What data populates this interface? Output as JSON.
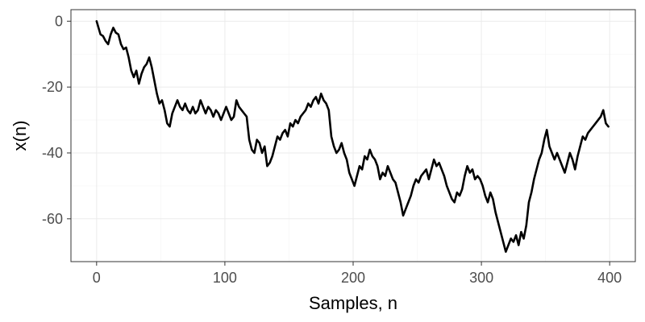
{
  "chart_data": {
    "type": "line",
    "title": "",
    "xlabel": "Samples, n",
    "ylabel": "x(n)",
    "xlim": [
      -20,
      420
    ],
    "ylim": [
      -73,
      3.5
    ],
    "x_ticks": [
      0,
      100,
      200,
      300,
      400
    ],
    "y_ticks": [
      0,
      -20,
      -40,
      -60
    ],
    "x_tick_labels": [
      "0",
      "100",
      "200",
      "300",
      "400"
    ],
    "y_tick_labels": [
      "0",
      "-20",
      "-40",
      "-60"
    ],
    "grid": true,
    "legend": "none",
    "line_color": "#000000",
    "series": [
      {
        "name": "x(n)",
        "x": [
          0,
          3,
          5,
          7,
          9,
          11,
          13,
          15,
          17,
          19,
          21,
          23,
          25,
          27,
          29,
          31,
          33,
          35,
          37,
          39,
          41,
          43,
          45,
          47,
          49,
          51,
          53,
          55,
          57,
          59,
          61,
          63,
          65,
          67,
          69,
          71,
          73,
          75,
          77,
          79,
          81,
          83,
          85,
          87,
          89,
          91,
          93,
          95,
          97,
          99,
          101,
          103,
          105,
          107,
          109,
          111,
          113,
          115,
          117,
          119,
          121,
          123,
          125,
          127,
          129,
          131,
          133,
          135,
          137,
          139,
          141,
          143,
          145,
          147,
          149,
          151,
          153,
          155,
          157,
          159,
          161,
          163,
          165,
          167,
          169,
          171,
          173,
          175,
          177,
          179,
          181,
          183,
          185,
          187,
          189,
          191,
          193,
          195,
          197,
          199,
          201,
          203,
          205,
          207,
          209,
          211,
          213,
          215,
          217,
          219,
          221,
          223,
          225,
          227,
          229,
          231,
          233,
          235,
          237,
          239,
          241,
          243,
          245,
          247,
          249,
          251,
          253,
          255,
          257,
          259,
          261,
          263,
          265,
          267,
          269,
          271,
          273,
          275,
          277,
          279,
          281,
          283,
          285,
          287,
          289,
          291,
          293,
          295,
          297,
          299,
          301,
          303,
          305,
          307,
          309,
          311,
          313,
          315,
          317,
          319,
          321,
          323,
          325,
          327,
          329,
          331,
          333,
          335,
          337,
          339,
          341,
          343,
          345,
          347,
          349,
          351,
          353,
          355,
          357,
          359,
          361,
          363,
          365,
          367,
          369,
          371,
          373,
          375,
          377,
          379,
          381,
          383,
          385,
          387,
          389,
          391,
          393,
          395,
          397,
          399
        ],
        "values": [
          0,
          -4,
          -4.5,
          -6,
          -7,
          -4,
          -2,
          -3.5,
          -4,
          -7,
          -8.5,
          -8,
          -11,
          -15,
          -17,
          -15,
          -19,
          -16,
          -14,
          -13,
          -11,
          -14,
          -18,
          -22,
          -25,
          -24,
          -27,
          -31,
          -32,
          -28,
          -26,
          -24,
          -26,
          -27,
          -25,
          -27,
          -28,
          -26,
          -28,
          -27,
          -24,
          -26,
          -28,
          -26,
          -27,
          -29,
          -27,
          -28,
          -30,
          -28,
          -26,
          -28,
          -30,
          -29,
          -24,
          -26,
          -27,
          -28,
          -29,
          -36,
          -39,
          -40,
          -36,
          -37,
          -40,
          -38,
          -44,
          -43,
          -41,
          -38,
          -35,
          -36,
          -34,
          -33,
          -35,
          -31,
          -32,
          -30,
          -31,
          -29,
          -28,
          -27,
          -25,
          -26,
          -24,
          -23,
          -25,
          -22,
          -24,
          -25,
          -27,
          -35,
          -38,
          -40,
          -39,
          -37,
          -40,
          -42,
          -46,
          -48,
          -50,
          -47,
          -44,
          -45,
          -41,
          -42,
          -39,
          -41,
          -42,
          -44,
          -48,
          -46,
          -47,
          -44,
          -46,
          -48,
          -49,
          -52,
          -55,
          -59,
          -57,
          -55,
          -53,
          -50,
          -48,
          -49,
          -47,
          -46,
          -45,
          -48,
          -45,
          -42,
          -44,
          -43,
          -45,
          -47,
          -50,
          -52,
          -54,
          -55,
          -52,
          -53,
          -51,
          -47,
          -44,
          -46,
          -45,
          -48,
          -47,
          -48,
          -50,
          -53,
          -55,
          -52,
          -54,
          -58,
          -61,
          -64,
          -67,
          -70,
          -68,
          -66,
          -67,
          -65,
          -68,
          -64,
          -66,
          -62,
          -55,
          -52,
          -48,
          -45,
          -42,
          -40,
          -36,
          -33,
          -38,
          -40,
          -42,
          -40,
          -42,
          -44,
          -46,
          -43,
          -40,
          -42,
          -45,
          -41,
          -38,
          -35,
          -36,
          -34,
          -33,
          -32,
          -31,
          -30,
          -29,
          -27,
          -31,
          -32
        ]
      }
    ]
  }
}
